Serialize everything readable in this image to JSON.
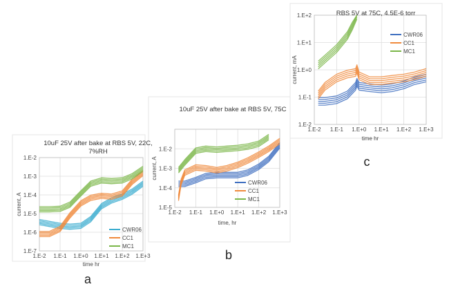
{
  "panels": [
    {
      "label": "a",
      "title": [
        "10uF 25V after bake at RBS 5V, 22C,",
        "7%RH"
      ]
    },
    {
      "label": "b",
      "title": [
        "10uF 25V after bake at RBS 5V, 75C"
      ]
    },
    {
      "label": "c",
      "title": [
        "RBS 5V at 75C, 4.5E-6 torr"
      ]
    }
  ],
  "chart_data": [
    {
      "type": "line",
      "panel": "a",
      "title": "10uF 25V after bake at RBS 5V, 22C, 7%RH",
      "xlabel": "time hr",
      "ylabel": "current, A",
      "xscale": "log",
      "yscale": "log",
      "xlim": [
        0.01,
        1000
      ],
      "ylim": [
        1e-07,
        0.01
      ],
      "xticks": [
        "1.E-2",
        "1.E-1",
        "1.E+0",
        "1.E+1",
        "1.E+2",
        "1.E+3"
      ],
      "yticks": [
        "1.E-7",
        "1.E-6",
        "1.E-5",
        "1.E-4",
        "1.E-3",
        "1.E-2"
      ],
      "grid": true,
      "legend": "bottom-right",
      "series": [
        {
          "name": "CWR06",
          "color": "#3aaccf",
          "x": [
            0.01,
            0.03,
            0.1,
            0.3,
            1,
            3,
            10,
            30,
            100,
            300,
            1000
          ],
          "y": [
            3.5e-06,
            2.8e-06,
            2.2e-06,
            2e-06,
            2.2e-06,
            5e-06,
            2.5e-05,
            5e-05,
            8e-05,
            0.00015,
            0.0004
          ]
        },
        {
          "name": "CC1",
          "color": "#f08a3c",
          "x": [
            0.01,
            0.03,
            0.1,
            0.3,
            1,
            3,
            10,
            30,
            100,
            300,
            1000
          ],
          "y": [
            8e-07,
            8e-07,
            1.5e-06,
            8e-06,
            3.5e-05,
            7e-05,
            9e-05,
            8e-05,
            0.00012,
            0.0005,
            0.0015
          ]
        },
        {
          "name": "MC1",
          "color": "#7ab648",
          "x": [
            0.01,
            0.03,
            0.1,
            0.3,
            1,
            3,
            10,
            30,
            100,
            300,
            1000
          ],
          "y": [
            1.7e-05,
            1.7e-05,
            1.8e-05,
            3e-05,
            0.00012,
            0.0004,
            0.0006,
            0.00055,
            0.0006,
            0.001,
            0.0025
          ]
        }
      ]
    },
    {
      "type": "line",
      "panel": "b",
      "title": "10uF 25V after bake at RBS 5V, 75C",
      "xlabel": "time, hr",
      "ylabel": "current, A",
      "xscale": "log",
      "yscale": "log",
      "xlim": [
        0.01,
        1000
      ],
      "ylim": [
        1e-05,
        0.1
      ],
      "xticks": [
        "1.E-2",
        "1.E-1",
        "1.E+0",
        "1.E+1",
        "1.E+2",
        "1.E+3"
      ],
      "yticks": [
        "1.E-5",
        "1.E-4",
        "1.E-3",
        "1.E-2"
      ],
      "grid": true,
      "legend": "bottom-right",
      "series": [
        {
          "name": "CWR06",
          "color": "#3f6fc0",
          "x": [
            0.015,
            0.03,
            0.1,
            0.3,
            1,
            3,
            10,
            30,
            100,
            300,
            1000
          ],
          "y": [
            0.00016,
            0.00016,
            0.00025,
            0.0004,
            0.00045,
            0.00045,
            0.00045,
            0.0006,
            0.0012,
            0.003,
            0.015
          ]
        },
        {
          "name": "CC1",
          "color": "#f08a3c",
          "x": [
            0.015,
            0.02,
            0.03,
            0.1,
            0.3,
            1,
            3,
            10,
            30,
            100,
            300,
            1000
          ],
          "y": [
            3e-05,
            0.0002,
            0.0006,
            0.0011,
            0.001,
            0.0008,
            0.001,
            0.0015,
            0.0025,
            0.005,
            0.01,
            0.025
          ]
        },
        {
          "name": "MC1",
          "color": "#7ab648",
          "x": [
            0.015,
            0.03,
            0.1,
            0.3,
            1,
            3,
            10,
            30,
            100,
            300
          ],
          "y": [
            0.0008,
            0.002,
            0.008,
            0.01,
            0.009,
            0.01,
            0.011,
            0.013,
            0.018,
            0.04
          ]
        }
      ]
    },
    {
      "type": "line",
      "panel": "c",
      "title": "RBS 5V at 75C, 4.5E-6 torr",
      "xlabel": "time hr",
      "ylabel": "current, mA",
      "xscale": "log",
      "yscale": "log",
      "xlim": [
        0.01,
        1000
      ],
      "ylim": [
        0.01,
        100
      ],
      "xticks": [
        "1.E-2",
        "1.E-1",
        "1.E+0",
        "1.E+1",
        "1.E+2",
        "1.E+3"
      ],
      "yticks": [
        "1.E-2",
        "1.E-1",
        "1.E+0",
        "1.E+1",
        "1.E+2"
      ],
      "grid": true,
      "legend": "top-right",
      "series": [
        {
          "name": "CWR06",
          "color": "#3f6fc0",
          "x": [
            0.015,
            0.03,
            0.1,
            0.3,
            0.7,
            0.8,
            1,
            3,
            10,
            30,
            100,
            300,
            1000
          ],
          "y": [
            0.07,
            0.07,
            0.08,
            0.12,
            0.25,
            0.35,
            0.25,
            0.22,
            0.2,
            0.22,
            0.28,
            0.4,
            0.5
          ]
        },
        {
          "name": "CC1",
          "color": "#f08a3c",
          "x": [
            0.015,
            0.03,
            0.1,
            0.3,
            0.7,
            0.8,
            1,
            3,
            10,
            30,
            100,
            300,
            1000
          ],
          "y": [
            0.12,
            0.25,
            0.5,
            0.7,
            0.8,
            1.1,
            0.6,
            0.4,
            0.4,
            0.45,
            0.5,
            0.6,
            0.8
          ]
        },
        {
          "name": "MC1",
          "color": "#7ab648",
          "x": [
            0.015,
            0.03,
            0.1,
            0.3,
            0.5,
            0.8
          ],
          "y": [
            1.5,
            2.5,
            6,
            18,
            40,
            100
          ]
        }
      ]
    }
  ]
}
